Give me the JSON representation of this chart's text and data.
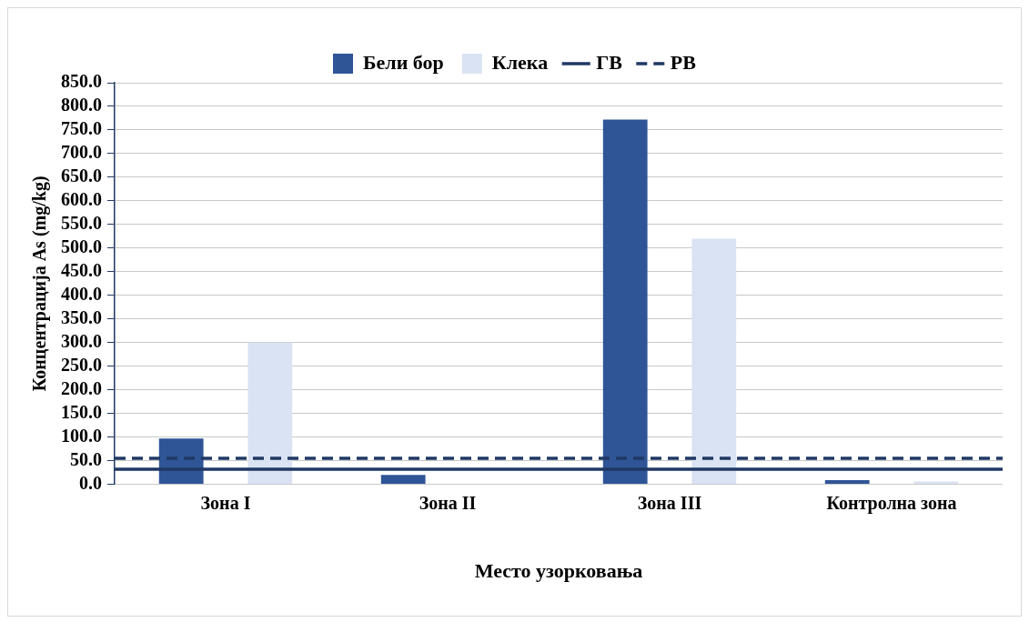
{
  "chart_data": {
    "type": "bar",
    "xlabel": "Место узорковања",
    "ylabel": "Концентрација As (mg/kg)",
    "categories": [
      "Зона I",
      "Зона II",
      "Зона III",
      "Контролна зона"
    ],
    "series": [
      {
        "name": "Бели бор",
        "color": "#2f5597",
        "values": [
          97,
          20,
          772,
          9
        ]
      },
      {
        "name": "Клека",
        "color": "#dae3f3",
        "values": [
          300,
          1,
          520,
          6
        ]
      }
    ],
    "ref_lines": [
      {
        "axis": "y",
        "value": 32,
        "label": "ГВ",
        "color": "#1f3864",
        "line_style": "solid"
      },
      {
        "axis": "y",
        "value": 55,
        "label": "РВ",
        "color": "#1f3864",
        "line_style": "dashed"
      }
    ],
    "ylim": [
      0,
      850
    ],
    "yticks": [
      {
        "value": 0,
        "label": "0.0"
      },
      {
        "value": 50,
        "label": "50.0"
      },
      {
        "value": 100,
        "label": "100.0"
      },
      {
        "value": 150,
        "label": "150.0"
      },
      {
        "value": 200,
        "label": "200.0"
      },
      {
        "value": 250,
        "label": "250.0"
      },
      {
        "value": 300,
        "label": "300.0"
      },
      {
        "value": 350,
        "label": "350.0"
      },
      {
        "value": 400,
        "label": "400.0"
      },
      {
        "value": 450,
        "label": "450.0"
      },
      {
        "value": 500,
        "label": "500.0"
      },
      {
        "value": 550,
        "label": "550.0"
      },
      {
        "value": 600,
        "label": "600.0"
      },
      {
        "value": 650,
        "label": "650.0"
      },
      {
        "value": 700,
        "label": "700.0"
      },
      {
        "value": 750,
        "label": "750.0"
      },
      {
        "value": 800,
        "label": "800.0"
      },
      {
        "value": 850,
        "label": "850.0"
      }
    ],
    "grid": "y",
    "legend": "top"
  }
}
